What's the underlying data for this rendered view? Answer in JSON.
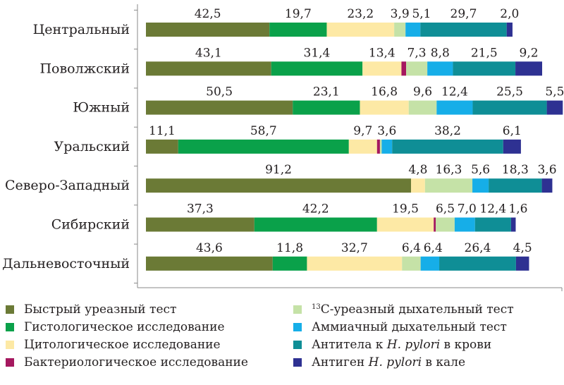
{
  "chart_data": {
    "type": "bar",
    "orientation": "horizontal",
    "stacked": true,
    "categories": [
      "Центральный",
      "Поволжский",
      "Южный",
      "Уральский",
      "Северо-Западный",
      "Сибирский",
      "Дальневосточный"
    ],
    "series": [
      {
        "name": "Быстрый уреазный тест",
        "color": "#6b7a36",
        "values": [
          42.5,
          43.1,
          50.5,
          11.1,
          91.2,
          37.3,
          43.6
        ],
        "labels": [
          "42,5",
          "43,1",
          "50,5",
          "11,1",
          "91,2",
          "37,3",
          "43,6"
        ]
      },
      {
        "name": "Гистологическое исследование",
        "color": "#0aa14a",
        "values": [
          19.7,
          31.4,
          23.1,
          58.7,
          0,
          42.2,
          11.8
        ],
        "labels": [
          "19,7",
          "31,4",
          "23,1",
          "58,7",
          "",
          "42,2",
          "11,8"
        ]
      },
      {
        "name": "Цитологическое исследование",
        "color": "#fde9a5",
        "values": [
          23.2,
          13.4,
          16.8,
          9.7,
          4.8,
          19.5,
          32.7
        ],
        "labels": [
          "23,2",
          "13,4",
          "16,8",
          "9,7",
          "4,8",
          "19,5",
          "32,7"
        ]
      },
      {
        "name": "Бактериологическое исследование",
        "color": "#a5185f",
        "values": [
          0,
          1.6,
          0,
          1.0,
          0,
          0.7,
          0
        ],
        "labels": [
          "",
          "",
          "",
          "",
          "",
          "",
          ""
        ]
      },
      {
        "name": "¹³С-уреазный дыхательный тест",
        "color": "#c5e2a7",
        "values": [
          3.9,
          7.3,
          9.6,
          0.6,
          16.3,
          6.5,
          6.4
        ],
        "labels": [
          "3,9",
          "7,3",
          "9,6",
          "",
          "16,3",
          "6,5",
          "6,4"
        ]
      },
      {
        "name": "Аммиачный дыхательный тест",
        "color": "#16aee8",
        "values": [
          5.1,
          8.8,
          12.4,
          3.6,
          5.6,
          7.0,
          6.4
        ],
        "labels": [
          "5,1",
          "8,8",
          "12,4",
          "3,6",
          "5,6",
          "7,0",
          "6,4"
        ]
      },
      {
        "name": "Антитела к H. pylori в крови",
        "color": "#0f8e96",
        "values": [
          29.7,
          21.5,
          25.5,
          38.2,
          18.3,
          12.4,
          26.4
        ],
        "labels": [
          "29,7",
          "21,5",
          "25,5",
          "38,2",
          "18,3",
          "12,4",
          "26,4"
        ]
      },
      {
        "name": "Антиген H. pylori в кале",
        "color": "#2e3192",
        "values": [
          2.0,
          9.2,
          5.5,
          6.1,
          3.6,
          1.6,
          4.5
        ],
        "labels": [
          "2,0",
          "9,2",
          "5,5",
          "6,1",
          "3,6",
          "1,6",
          "4,5"
        ]
      }
    ],
    "xlim": [
      0,
      146
    ],
    "grid": false,
    "legend_position": "bottom"
  },
  "legend": {
    "left": [
      {
        "text": "Быстрый уреазный тест",
        "color": "#6b7a36"
      },
      {
        "text": "Гистологическое исследование",
        "color": "#0aa14a"
      },
      {
        "text": "Цитологическое исследование",
        "color": "#fde9a5"
      },
      {
        "text": "Бактериологическое исследование",
        "color": "#a5185f"
      }
    ],
    "right": [
      {
        "pre": "",
        "sup": "13",
        "text": "С-уреазный дыхательный тест",
        "color": "#c5e2a7"
      },
      {
        "text": "Аммиачный дыхательный тест",
        "color": "#16aee8"
      },
      {
        "pre": "Антитела к ",
        "italic": "H. pylori",
        "post": " в крови",
        "color": "#0f8e96"
      },
      {
        "pre": "Антиген ",
        "italic": "H. pylori",
        "post": " в кале",
        "color": "#2e3192"
      }
    ]
  }
}
